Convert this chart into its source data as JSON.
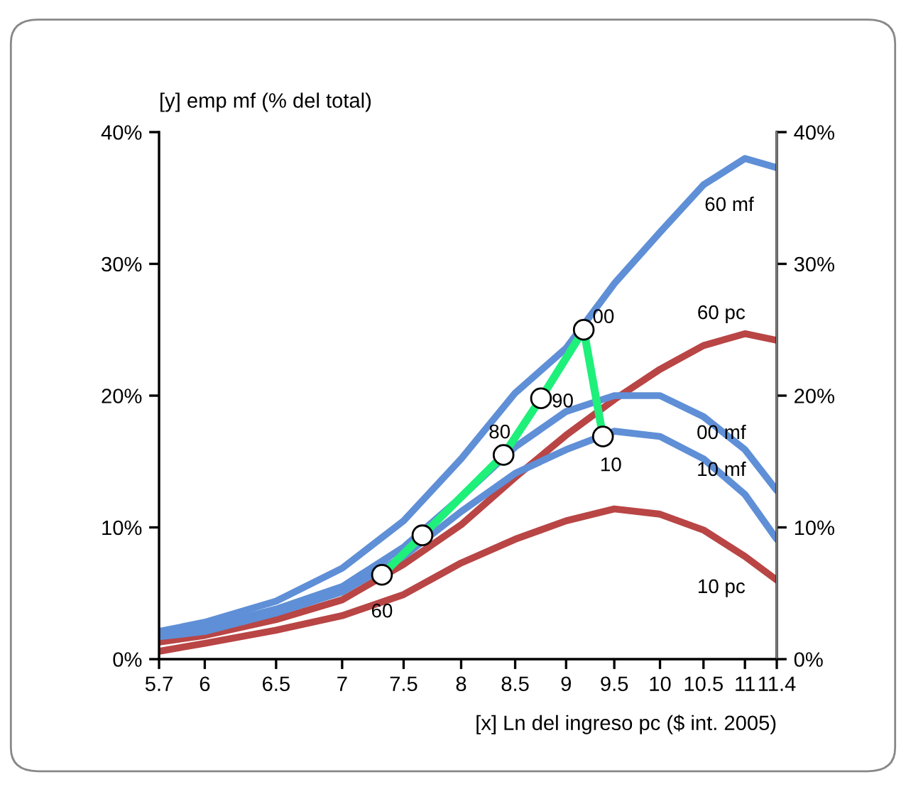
{
  "chart_data": {
    "type": "line",
    "xlabel": "[x] Ln del ingreso pc ($ int. 2005)",
    "ylabel": "[y] emp mf (% del total)",
    "log": "x",
    "x": [
      5.7,
      6,
      6.5,
      7,
      7.5,
      8,
      8.5,
      9,
      9.5,
      10,
      10.5,
      11,
      11.4
    ],
    "xlim": [
      5.7,
      11.4
    ],
    "xticks": [
      5.7,
      6,
      6.5,
      7,
      7.5,
      8,
      8.5,
      9,
      9.5,
      10,
      10.5,
      11,
      11.4
    ],
    "ylim": [
      0,
      40
    ],
    "yticks": [
      {
        "value": 0,
        "label": "0%"
      },
      {
        "value": 10,
        "label": "10%"
      },
      {
        "value": 20,
        "label": "20%"
      },
      {
        "value": 30,
        "label": "30%"
      },
      {
        "value": 40,
        "label": "40%"
      }
    ],
    "y2lim": [
      0,
      40
    ],
    "y2ticks": [
      {
        "value": 0,
        "label": "0%"
      },
      {
        "value": 10,
        "label": "10%"
      },
      {
        "value": 20,
        "label": "20%"
      },
      {
        "value": 30,
        "label": "30%"
      },
      {
        "value": 40,
        "label": "40%"
      }
    ],
    "grid": false,
    "legend": false,
    "line_style": "solid",
    "series": [
      {
        "name": "60 mf",
        "color": "#5f8fd6",
        "values": [
          2.1,
          2.8,
          4.4,
          6.9,
          10.5,
          15.2,
          20.2,
          23.6,
          28.5,
          32.4,
          36.0,
          38.0,
          37.3
        ]
      },
      {
        "name": "60 pc",
        "color": "#b94545",
        "values": [
          1.3,
          1.8,
          3.0,
          4.5,
          7.2,
          10.2,
          13.8,
          17.0,
          19.7,
          22.0,
          23.8,
          24.7,
          24.2
        ]
      },
      {
        "name": "00 mf",
        "color": "#5f8fd6",
        "values": [
          1.9,
          2.4,
          3.8,
          5.5,
          8.5,
          12.3,
          16.1,
          18.8,
          20.0,
          20.0,
          18.4,
          15.9,
          12.8
        ]
      },
      {
        "name": "10 mf",
        "color": "#5f8fd6",
        "values": [
          1.7,
          2.1,
          3.5,
          5.1,
          7.8,
          11.2,
          14.1,
          15.9,
          17.3,
          16.9,
          15.2,
          12.5,
          9.1
        ]
      },
      {
        "name": "10 pc",
        "color": "#b94545",
        "values": [
          0.6,
          1.2,
          2.2,
          3.3,
          4.9,
          7.3,
          9.1,
          10.5,
          11.4,
          11.0,
          9.8,
          7.8,
          6.0
        ]
      },
      {
        "color": "#1ef07a",
        "marker": "circle",
        "x": [
          7.32,
          7.66,
          8.39,
          8.75,
          9.18,
          9.38
        ],
        "values": [
          6.4,
          9.4,
          15.5,
          19.8,
          25.0,
          16.9
        ]
      }
    ],
    "annotations": [
      {
        "text": "60",
        "x": 7.32,
        "y": 6.4
      },
      {
        "text": "80",
        "x": 8.39,
        "y": 15.5
      },
      {
        "text": "90",
        "x": 8.75,
        "y": 19.8
      },
      {
        "text": "00",
        "x": 9.18,
        "y": 25.0
      },
      {
        "text": "10",
        "x": 9.38,
        "y": 16.9
      }
    ]
  }
}
